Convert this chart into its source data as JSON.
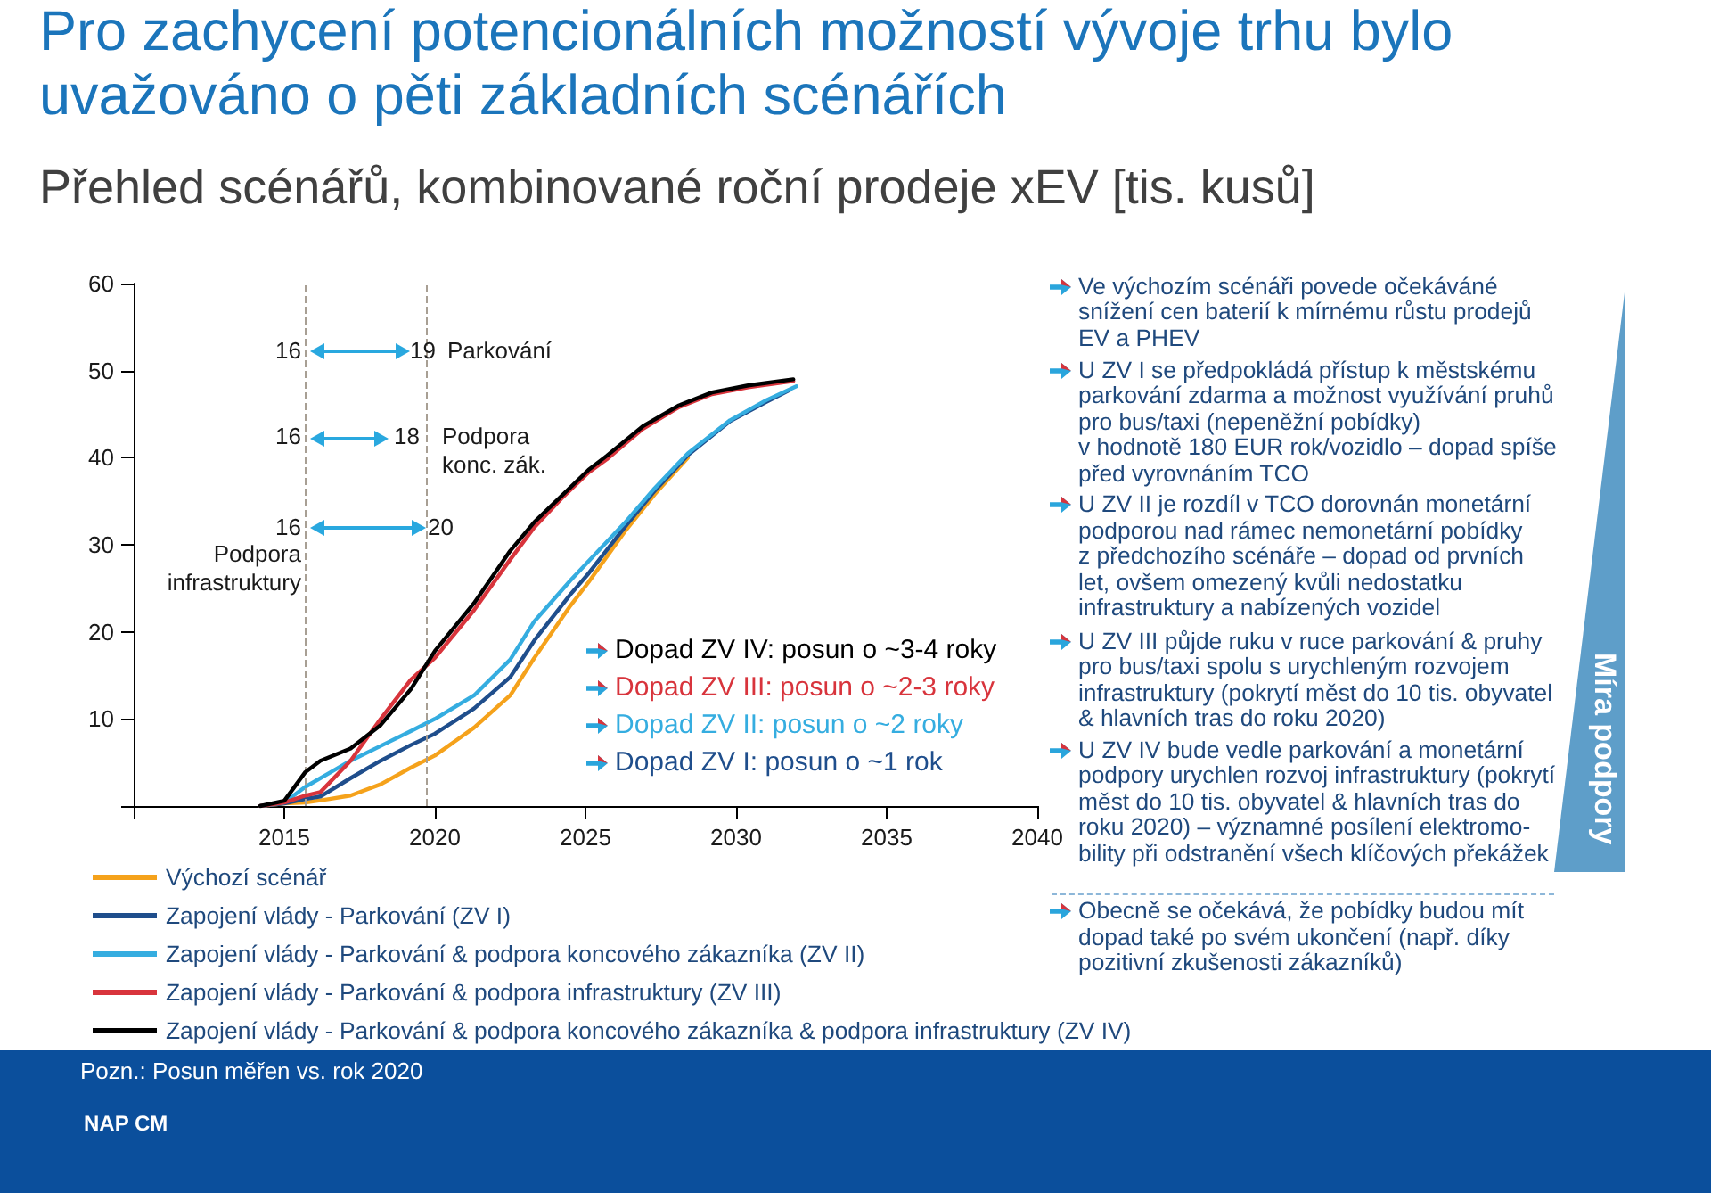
{
  "chart_data": {
    "type": "line",
    "title": "Pro zachycení potencionálních možností vývoje trhu bylo uvažováno o pěti základních scénářích",
    "subtitle": "Přehled scénářů, kombinované roční prodeje xEV [tis. kusů]",
    "series": [
      {
        "name": "Výchozí scénář",
        "color": "#f5a21b",
        "x": [
          2014.2,
          2015,
          2015.7,
          2016.5,
          2017.2,
          2018.2,
          2019.2,
          2020,
          2021.3,
          2022.5,
          2023.3,
          2024.5,
          2025.1,
          2026.3,
          2027.3,
          2028.4
        ],
        "values": [
          0,
          0.3,
          0.4,
          0.8,
          1.2,
          2.5,
          4.4,
          5.8,
          9.0,
          12.7,
          17.0,
          23.0,
          25.7,
          31.5,
          35.8,
          40.0
        ]
      },
      {
        "name": "Zapojení vlády - Parkování (ZV I)",
        "color": "#1f4e8c",
        "x": [
          2014.2,
          2015,
          2015.7,
          2016.2,
          2017.2,
          2018.2,
          2019.2,
          2020,
          2021.3,
          2022.5,
          2023.3,
          2024.5,
          2025.1,
          2026.3,
          2027.3,
          2028.4,
          2029.8,
          2031,
          2031.8
        ],
        "values": [
          0,
          0.3,
          0.8,
          1.1,
          3.2,
          5.2,
          7.0,
          8.3,
          11.2,
          14.8,
          19.0,
          24.3,
          26.7,
          32.0,
          36.2,
          40.3,
          44.2,
          46.4,
          47.8
        ]
      },
      {
        "name": "Zapojení vlády - Parkování & podpora koncového zákazníka (ZV II)",
        "color": "#35ade0",
        "x": [
          2014.2,
          2015,
          2015.7,
          2016.5,
          2017.2,
          2018.2,
          2019.2,
          2020,
          2021.3,
          2022.5,
          2023.3,
          2024.5,
          2025.1,
          2026.3,
          2027.3,
          2028.4,
          2029.8,
          2031,
          2032
        ],
        "values": [
          0,
          0.4,
          2.2,
          3.8,
          5.2,
          6.9,
          8.6,
          10.0,
          12.7,
          16.8,
          21.2,
          25.9,
          28.1,
          32.5,
          36.5,
          40.5,
          44.3,
          46.6,
          48.2
        ]
      },
      {
        "name": "Zapojení vlády - Parkování & podpora infrastruktury (ZV III)",
        "color": "#d8343c",
        "x": [
          2014.2,
          2015,
          2015.7,
          2016.2,
          2017.2,
          2018.2,
          2019.2,
          2020,
          2021.3,
          2022.5,
          2023.3,
          2024.2,
          2025.1,
          2025.7,
          2026.9,
          2028.1,
          2029.2,
          2030.4,
          2031.9
        ],
        "values": [
          0,
          0.4,
          1.2,
          1.6,
          5.2,
          10.0,
          14.5,
          17.0,
          22.5,
          28.3,
          32.0,
          35.3,
          38.3,
          39.8,
          43.3,
          45.8,
          47.3,
          48.1,
          48.8
        ]
      },
      {
        "name": "Zapojení vlády - Parkování & podpora koncového zákazníka & podpora infrastruktury (ZV IV)",
        "color": "#000000",
        "x": [
          2014.2,
          2015,
          2015.7,
          2016.2,
          2017.2,
          2018.2,
          2019.2,
          2020,
          2021.3,
          2022.5,
          2023.3,
          2024.2,
          2025.1,
          2025.7,
          2026.9,
          2028.1,
          2029.2,
          2030.4,
          2031.9
        ],
        "values": [
          0,
          0.6,
          3.9,
          5.2,
          6.6,
          9.3,
          13.4,
          17.8,
          23.3,
          29.3,
          32.6,
          35.6,
          38.6,
          40.2,
          43.6,
          46.0,
          47.5,
          48.3,
          49.0
        ]
      }
    ],
    "xlim": [
      2010,
      2040
    ],
    "xticks": [
      {
        "value": 2010,
        "label": null
      },
      2015,
      2020,
      2025,
      2030,
      2035,
      2040
    ],
    "ylim": [
      0,
      60
    ],
    "yticks": [
      {
        "value": 0,
        "label": null
      },
      10,
      20,
      30,
      40,
      50,
      60
    ],
    "ref_lines": [
      {
        "axis": "x",
        "value": 2015.7,
        "color": "#a89f94",
        "line_style": "dashed"
      },
      {
        "axis": "x",
        "value": 2019.7,
        "color": "#a89f94",
        "line_style": "dashed"
      }
    ],
    "annotations": [
      "16",
      "19",
      "Parkování",
      "16",
      "18",
      "Podpora konc. zák.",
      "16",
      "20",
      "Podpora infrastruktury",
      "Dopad ZV IV: posun o ~3-4 roky",
      "Dopad ZV III: posun o ~2-3 roky",
      "Dopad ZV II: posun o ~2 roky",
      "Dopad ZV I: posun o ~1 rok",
      "Ve výchozím scénáři povede očekáváné snížení cen baterií k mírnému růstu prodejů EV a PHEV",
      "U ZV I se předpokládá přístup k městskému parkování zdarma a možnost využívání pruhů pro bus/taxi (nepeněžní pobídky)\nv hodnotě 180 EUR rok/vozidlo – dopad spíše před vyrovnáním TCO",
      "U ZV II je rozdíl v TCO dorovnán monetární podporou nad rámec nemonetární pobídky\nz předchozího scénáře – dopad od prvních\nlet, ovšem omezený kvůli nedostatku infrastruktury a nabízených vozidel",
      "U ZV III půjde ruku v ruce parkování & pruhy pro bus/taxi spolu s urychleným rozvojem infrastruktury (pokrytí měst do 10 tis. obyvatel & hlavních tras do roku 2020)",
      "U ZV IV bude vedle parkování a monetární podpory urychlen rozvoj infrastruktury (pokrytí měst do 10 tis. obyvatel & hlavních tras do roku 2020) – významné posílení elektromo-bility při odstranění všech klíčových překážek",
      "Obecně se očekává, že pobídky budou mít dopad také po svém ukončení (např. díky pozitivní zkušenosti zákazníků)",
      "Míra podpory",
      "Pozn.: Posun měřen vs. rok 2020",
      "NAP CM"
    ],
    "legend": "bottom",
    "marker": "none"
  }
}
